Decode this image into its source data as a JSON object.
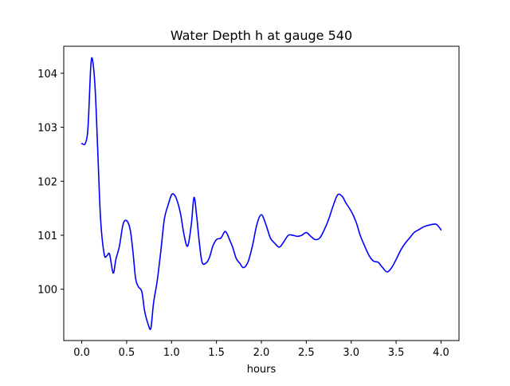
{
  "chart_data": {
    "type": "line",
    "title": "Water Depth h at gauge 540",
    "xlabel": "hours",
    "ylabel": "",
    "xlim": [
      -0.2,
      4.2
    ],
    "ylim": [
      99.05,
      104.5
    ],
    "xticks": [
      0.0,
      0.5,
      1.0,
      1.5,
      2.0,
      2.5,
      3.0,
      3.5,
      4.0
    ],
    "xtick_labels": [
      "0.0",
      "0.5",
      "1.0",
      "1.5",
      "2.0",
      "2.5",
      "3.0",
      "3.5",
      "4.0"
    ],
    "yticks": [
      100,
      101,
      102,
      103,
      104
    ],
    "ytick_labels": [
      "100",
      "101",
      "102",
      "103",
      "104"
    ],
    "grid": false,
    "legend": "none",
    "series": [
      {
        "color": "#0000ff",
        "x": [
          0.0,
          0.04,
          0.07,
          0.1,
          0.12,
          0.15,
          0.18,
          0.21,
          0.25,
          0.28,
          0.31,
          0.35,
          0.38,
          0.42,
          0.46,
          0.5,
          0.54,
          0.57,
          0.6,
          0.63,
          0.67,
          0.7,
          0.74,
          0.77,
          0.8,
          0.84,
          0.88,
          0.92,
          0.96,
          1.0,
          1.03,
          1.06,
          1.1,
          1.14,
          1.18,
          1.22,
          1.25,
          1.28,
          1.31,
          1.34,
          1.38,
          1.42,
          1.46,
          1.5,
          1.55,
          1.6,
          1.65,
          1.68,
          1.72,
          1.76,
          1.8,
          1.85,
          1.9,
          1.95,
          2.0,
          2.05,
          2.1,
          2.15,
          2.2,
          2.25,
          2.3,
          2.35,
          2.4,
          2.45,
          2.5,
          2.55,
          2.6,
          2.65,
          2.7,
          2.75,
          2.8,
          2.85,
          2.9,
          2.94,
          2.98,
          3.02,
          3.06,
          3.1,
          3.15,
          3.2,
          3.25,
          3.3,
          3.35,
          3.4,
          3.45,
          3.5,
          3.55,
          3.6,
          3.65,
          3.7,
          3.75,
          3.8,
          3.85,
          3.9,
          3.95,
          4.0
        ],
        "y": [
          102.7,
          102.7,
          103.0,
          104.1,
          104.25,
          103.7,
          102.5,
          101.3,
          100.65,
          100.62,
          100.65,
          100.3,
          100.55,
          100.8,
          101.2,
          101.27,
          101.1,
          100.7,
          100.2,
          100.05,
          99.95,
          99.6,
          99.35,
          99.28,
          99.75,
          100.15,
          100.7,
          101.3,
          101.55,
          101.75,
          101.75,
          101.65,
          101.4,
          101.0,
          100.8,
          101.2,
          101.7,
          101.35,
          100.85,
          100.5,
          100.48,
          100.58,
          100.8,
          100.92,
          100.95,
          101.07,
          100.9,
          100.78,
          100.57,
          100.48,
          100.4,
          100.5,
          100.8,
          101.2,
          101.38,
          101.2,
          100.95,
          100.85,
          100.78,
          100.88,
          101.0,
          101.0,
          100.98,
          101.0,
          101.05,
          100.98,
          100.92,
          100.95,
          101.1,
          101.3,
          101.55,
          101.75,
          101.72,
          101.6,
          101.5,
          101.38,
          101.22,
          101.0,
          100.8,
          100.62,
          100.52,
          100.5,
          100.4,
          100.32,
          100.4,
          100.55,
          100.72,
          100.85,
          100.95,
          101.05,
          101.1,
          101.15,
          101.18,
          101.2,
          101.2,
          101.1
        ]
      }
    ]
  }
}
